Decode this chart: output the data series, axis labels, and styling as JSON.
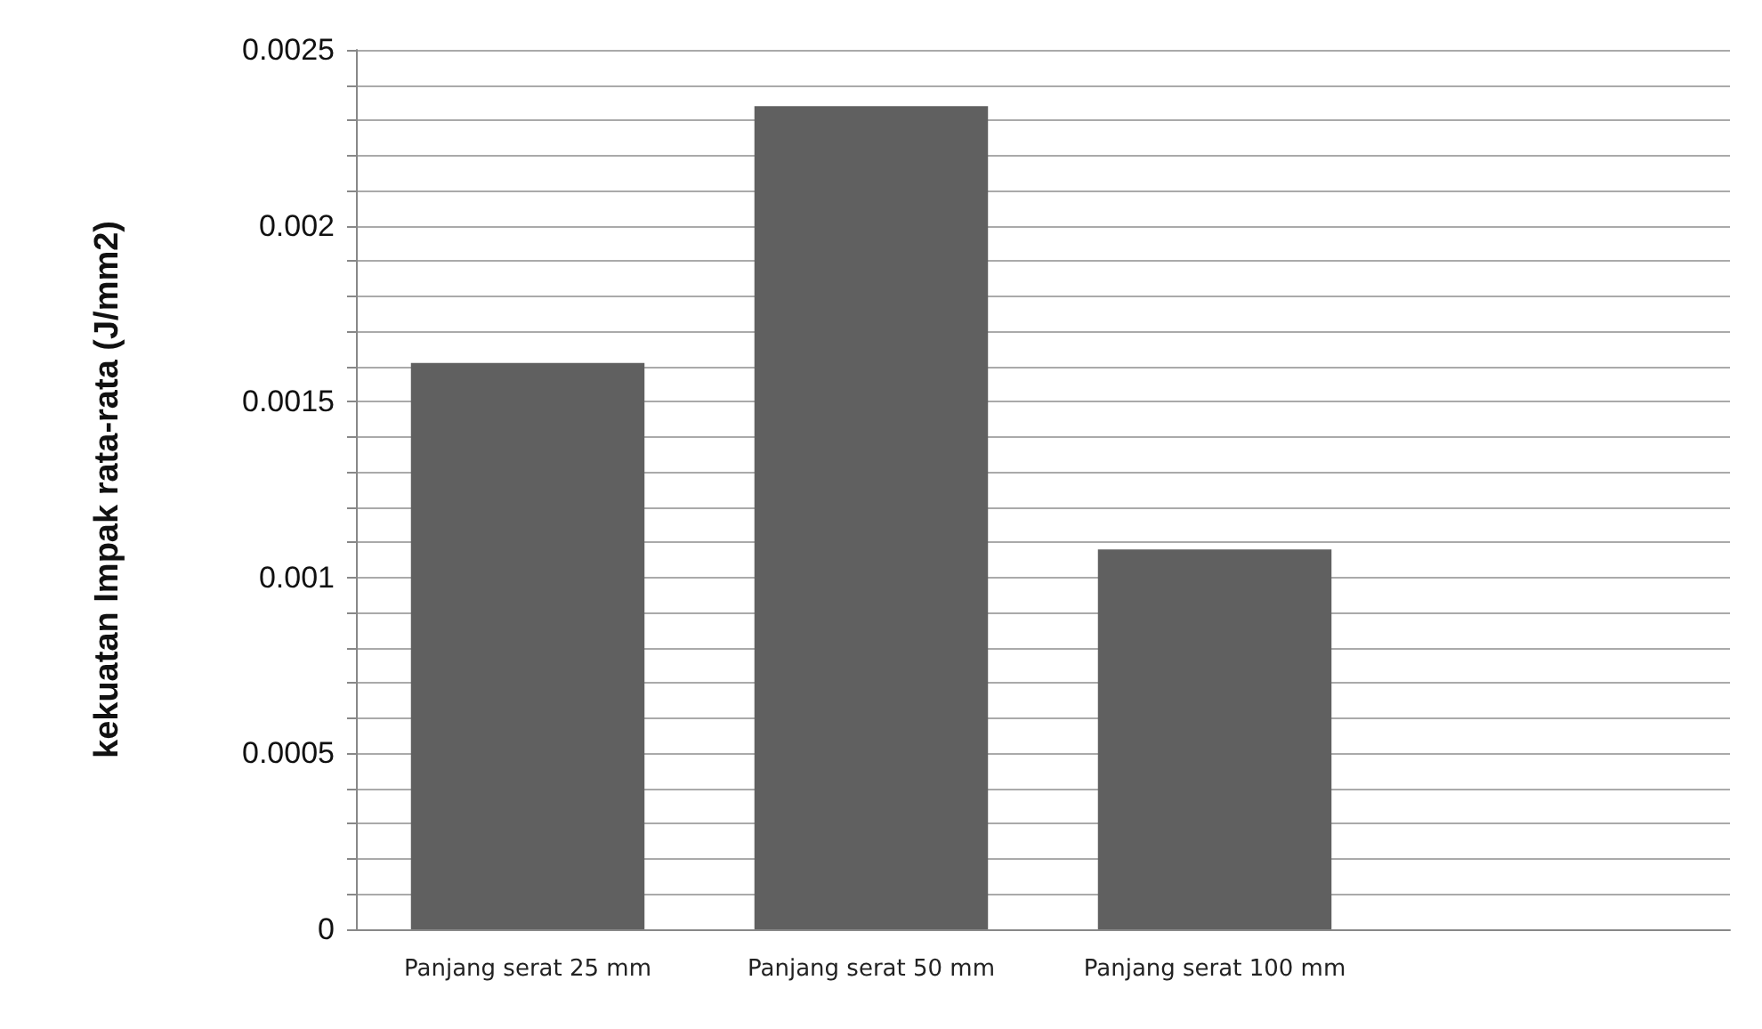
{
  "chart_data": {
    "type": "bar",
    "ylabel": "kekuatan Impak rata-rata (J/mm2)",
    "categories": [
      "Panjang serat 25 mm",
      "Panjang serat 50 mm",
      "Panjang serat 100 mm",
      null
    ],
    "values": [
      0.00161,
      0.00234,
      0.00108,
      null
    ],
    "color": "#606060",
    "ylim": [
      0,
      0.0025
    ],
    "yticks": [
      0,
      {
        "value": 0.0001,
        "label": null
      },
      {
        "value": 0.0002,
        "label": null
      },
      {
        "value": 0.0003,
        "label": null
      },
      {
        "value": 0.0004,
        "label": null
      },
      0.0005,
      {
        "value": 0.0006,
        "label": null
      },
      {
        "value": 0.0007,
        "label": null
      },
      {
        "value": 0.0008,
        "label": null
      },
      {
        "value": 0.0009,
        "label": null
      },
      0.001,
      {
        "value": 0.0011,
        "label": null
      },
      {
        "value": 0.0012,
        "label": null
      },
      {
        "value": 0.0013,
        "label": null
      },
      {
        "value": 0.0014,
        "label": null
      },
      0.0015,
      {
        "value": 0.0016,
        "label": null
      },
      {
        "value": 0.0017,
        "label": null
      },
      {
        "value": 0.0018,
        "label": null
      },
      {
        "value": 0.0019,
        "label": null
      },
      0.002,
      {
        "value": 0.0021,
        "label": null
      },
      {
        "value": 0.0022,
        "label": null
      },
      {
        "value": 0.0023,
        "label": null
      },
      {
        "value": 0.0024,
        "label": null
      },
      0.0025
    ],
    "grid": "y"
  }
}
